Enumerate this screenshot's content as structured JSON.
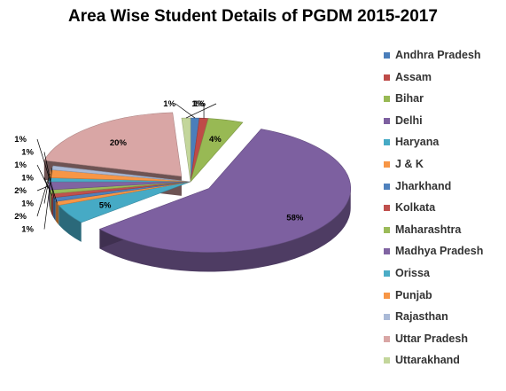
{
  "chart_data": {
    "type": "pie",
    "title": "Area Wise Student Details of PGDM 2015-2017",
    "categories": [
      "Andhra Pradesh",
      "Assam",
      "Bihar",
      "Delhi",
      "Haryana",
      "J & K",
      "Jharkhand",
      "Kolkata",
      "Maharashtra",
      "Madhya Pradesh",
      "Orissa",
      "Punjab",
      "Rajasthan",
      "Uttar Pradesh",
      "Uttarakhand"
    ],
    "values": [
      1,
      1,
      4,
      58,
      5,
      1,
      1,
      1,
      1,
      2,
      1,
      2,
      1,
      20,
      1
    ],
    "data_labels": [
      "1%",
      "1%",
      "4%",
      "58%",
      "5%",
      "1%",
      "1%",
      "1%",
      "1%",
      "2%",
      "1%",
      "2%",
      "1%",
      "20%",
      "1%"
    ],
    "colors": [
      "#4a7ebb",
      "#be4b48",
      "#98b954",
      "#7d60a0",
      "#46aac5",
      "#f79646",
      "#4f81bd",
      "#c0504d",
      "#9bbb59",
      "#8064a2",
      "#4bacc6",
      "#f79646",
      "#aabad7",
      "#d9a6a5",
      "#c3d69b"
    ],
    "legend_position": "right",
    "style": "3d-exploded"
  }
}
